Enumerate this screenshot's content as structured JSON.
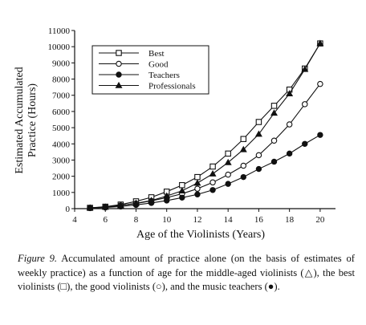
{
  "chart_data": {
    "type": "line",
    "xlabel": "Age of the Violinists (Years)",
    "ylabel_lines": [
      "Estimated Accumulated",
      "Practice (Hours)"
    ],
    "xlim": [
      4,
      21
    ],
    "ylim": [
      0,
      11000
    ],
    "xticks": [
      4,
      6,
      8,
      10,
      12,
      14,
      16,
      18,
      20
    ],
    "yticks": [
      0,
      1000,
      2000,
      3000,
      4000,
      5000,
      6000,
      7000,
      8000,
      9000,
      10000,
      11000
    ],
    "x": [
      5,
      6,
      7,
      8,
      9,
      10,
      11,
      12,
      13,
      14,
      15,
      16,
      17,
      18,
      19,
      20
    ],
    "legend_position": "top-left",
    "series": [
      {
        "name": "Best",
        "marker": "square-open",
        "values": [
          50,
          120,
          250,
          450,
          700,
          1050,
          1450,
          1950,
          2600,
          3400,
          4300,
          5350,
          6350,
          7350,
          8650,
          10200
        ]
      },
      {
        "name": "Good",
        "marker": "circle-open",
        "values": [
          40,
          100,
          200,
          320,
          480,
          680,
          920,
          1230,
          1620,
          2100,
          2650,
          3300,
          4200,
          5200,
          6450,
          7700
        ]
      },
      {
        "name": "Teachers",
        "marker": "circle-filled",
        "values": [
          30,
          70,
          130,
          230,
          350,
          500,
          680,
          880,
          1150,
          1530,
          1950,
          2450,
          2900,
          3400,
          4000,
          4550
        ]
      },
      {
        "name": "Professionals",
        "marker": "triangle-filled",
        "values": [
          50,
          100,
          190,
          330,
          500,
          780,
          1100,
          1580,
          2150,
          2850,
          3650,
          4600,
          5900,
          7100,
          8600,
          10200
        ]
      }
    ]
  },
  "caption": {
    "label": "Figure 9.",
    "text": "Accumulated amount of practice alone (on the basis of estimates of weekly practice) as a function of age for the middle-aged violinists (△), the best violinists (□), the good violinists (○), and the music teachers (●)."
  }
}
